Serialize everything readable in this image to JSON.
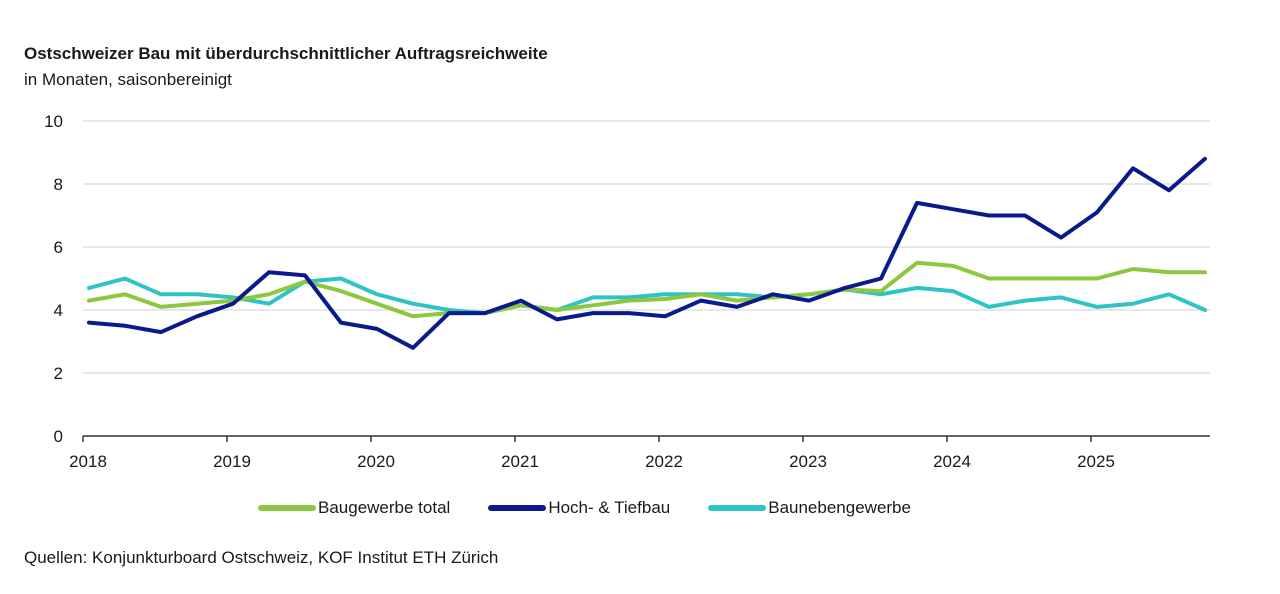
{
  "chart_data": {
    "type": "line",
    "title": "Ostschweizer Bau mit überdurchschnittlicher Auftragsreichweite",
    "subtitle": "in Monaten, saisonbereinigt",
    "xlabel": "",
    "ylabel": "",
    "ylim": [
      0,
      10
    ],
    "yticks": [
      "0",
      "2",
      "4",
      "6",
      "8",
      "10"
    ],
    "ytick_values": [
      0,
      2,
      4,
      6,
      8,
      10
    ],
    "xticks": [
      "2018",
      "2019",
      "2020",
      "2021",
      "2022",
      "2023",
      "2024",
      "2025"
    ],
    "xtick_values": [
      2018,
      2019,
      2020,
      2021,
      2022,
      2023,
      2024,
      2025
    ],
    "xlim": [
      2018,
      2025.83
    ],
    "grid": true,
    "legend_position": "bottom",
    "x": [
      "2018 Q1",
      "2018 Q2",
      "2018 Q3",
      "2018 Q4",
      "2019 Q1",
      "2019 Q2",
      "2019 Q3",
      "2019 Q4",
      "2020 Q1",
      "2020 Q2",
      "2020 Q3",
      "2020 Q4",
      "2021 Q1",
      "2021 Q2",
      "2021 Q3",
      "2021 Q4",
      "2022 Q1",
      "2022 Q2",
      "2022 Q3",
      "2022 Q4",
      "2023 Q1",
      "2023 Q2",
      "2023 Q3",
      "2023 Q4",
      "2024 Q1",
      "2024 Q2",
      "2024 Q3",
      "2024 Q4",
      "2025 Q1",
      "2025 Q2",
      "2025 Q3",
      "2025 Q4"
    ],
    "series": [
      {
        "name": "Baugewerbe total",
        "color": "#8dc63f",
        "values": [
          4.3,
          4.5,
          4.1,
          4.2,
          4.3,
          4.5,
          4.9,
          4.6,
          4.2,
          3.8,
          3.9,
          3.9,
          4.15,
          4.0,
          4.15,
          4.3,
          4.35,
          4.5,
          4.3,
          4.4,
          4.5,
          4.65,
          4.6,
          5.5,
          5.4,
          5.0,
          5.0,
          5.0,
          5.0,
          5.3,
          5.2,
          5.2
        ]
      },
      {
        "name": "Hoch- & Tiefbau",
        "color": "#0a1a8c",
        "values": [
          3.6,
          3.5,
          3.3,
          3.8,
          4.2,
          5.2,
          5.1,
          3.6,
          3.4,
          2.8,
          3.9,
          3.9,
          4.3,
          3.7,
          3.9,
          3.9,
          3.8,
          4.3,
          4.1,
          4.5,
          4.3,
          4.7,
          5.0,
          7.4,
          7.2,
          7.0,
          7.0,
          6.3,
          7.1,
          8.5,
          7.8,
          8.8
        ]
      },
      {
        "name": "Baunebengewerbe",
        "color": "#2ec4c6",
        "values": [
          4.7,
          5.0,
          4.5,
          4.5,
          4.4,
          4.2,
          4.9,
          5.0,
          4.5,
          4.2,
          4.0,
          3.9,
          4.15,
          4.0,
          4.4,
          4.4,
          4.5,
          4.5,
          4.5,
          4.4,
          4.5,
          4.65,
          4.5,
          4.7,
          4.6,
          4.1,
          4.3,
          4.4,
          4.1,
          4.2,
          4.5,
          4.0
        ]
      }
    ],
    "source": "Quellen: Konjunkturboard Ostschweiz, KOF Institut ETH Zürich"
  }
}
